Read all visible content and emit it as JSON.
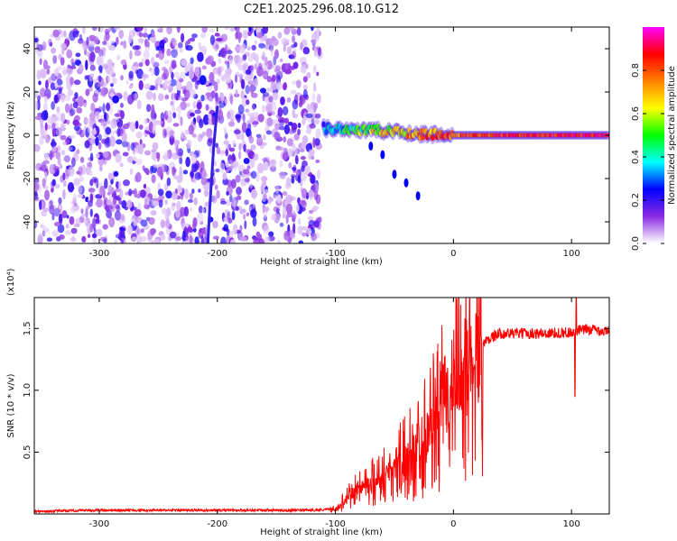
{
  "chart_data": [
    {
      "type": "heatmap",
      "title": "C2E1.2025.296.08.10.G12",
      "xlabel": "Height of straight line (km)",
      "ylabel": "Frequency (Hz)",
      "xlim": [
        -355,
        132
      ],
      "ylim": [
        -50,
        50
      ],
      "xticks": [
        -300,
        -200,
        -100,
        0,
        100
      ],
      "xtick_labels": [
        "-300",
        "-200",
        "-100",
        "0",
        "100"
      ],
      "yticks": [
        -40,
        -20,
        0,
        20,
        40
      ],
      "ytick_labels": [
        "-40",
        "-20",
        "0",
        "20",
        "40"
      ],
      "colorbar": {
        "label": "Normalized spectral amplitude",
        "range": [
          0,
          1
        ],
        "ticks": [
          0.0,
          0.2,
          0.4,
          0.6,
          0.8
        ],
        "tick_labels": [
          "0.0",
          "0.2",
          "0.4",
          "0.6",
          "0.8"
        ],
        "colors": [
          "#ffffff",
          "#8a2be2",
          "#0000ff",
          "#00ffff",
          "#00ff00",
          "#ffff00",
          "#ff8000",
          "#ff0000",
          "#ff00ff"
        ]
      },
      "noise_region_x": [
        -355,
        -113
      ],
      "signal_track": [
        {
          "x": -110,
          "f": 3.5,
          "a": 0.3
        },
        {
          "x": -95,
          "f": 3.0,
          "a": 0.4
        },
        {
          "x": -80,
          "f": 2.5,
          "a": 0.5
        },
        {
          "x": -65,
          "f": 2.0,
          "a": 0.6
        },
        {
          "x": -50,
          "f": 1.5,
          "a": 0.65
        },
        {
          "x": -35,
          "f": 1.0,
          "a": 0.7
        },
        {
          "x": -20,
          "f": 0.5,
          "a": 0.75
        },
        {
          "x": 0,
          "f": 0.0,
          "a": 0.8
        },
        {
          "x": 50,
          "f": 0.0,
          "a": 0.85
        },
        {
          "x": 100,
          "f": 0.0,
          "a": 0.9
        },
        {
          "x": 132,
          "f": 0.0,
          "a": 0.9
        }
      ],
      "secondary_track": [
        {
          "x": -70,
          "f": -5
        },
        {
          "x": -60,
          "f": -9
        },
        {
          "x": -50,
          "f": -18
        },
        {
          "x": -40,
          "f": -22
        },
        {
          "x": -30,
          "f": -28
        }
      ],
      "streak": [
        {
          "x": -200,
          "f": 13
        },
        {
          "x": -203,
          "f": -5
        },
        {
          "x": -206,
          "f": -30
        },
        {
          "x": -208,
          "f": -50
        }
      ]
    },
    {
      "type": "line",
      "xlabel": "Height of straight line (km)",
      "ylabel": "SNR (10 * v/v)",
      "yscale_label": "(x10⁴)",
      "color": "#ff0000",
      "xlim": [
        -355,
        132
      ],
      "ylim": [
        0,
        1.75
      ],
      "xticks": [
        -300,
        -200,
        -100,
        0,
        100
      ],
      "xtick_labels": [
        "-300",
        "-200",
        "-100",
        "0",
        "100"
      ],
      "yticks": [
        0.5,
        1.0,
        1.5
      ],
      "ytick_labels": [
        "0.5",
        "1.0",
        "1.5"
      ],
      "x": [
        -355,
        -300,
        -200,
        -120,
        -100,
        -90,
        -80,
        -70,
        -60,
        -50,
        -40,
        -30,
        -20,
        -15,
        -10,
        0,
        10,
        20,
        30,
        40,
        60,
        80,
        100,
        110,
        120,
        132
      ],
      "y": [
        0.02,
        0.03,
        0.03,
        0.03,
        0.04,
        0.12,
        0.22,
        0.25,
        0.3,
        0.38,
        0.45,
        0.55,
        0.68,
        0.75,
        0.85,
        0.98,
        1.15,
        1.33,
        1.42,
        1.46,
        1.46,
        1.46,
        1.47,
        1.49,
        1.49,
        1.47
      ]
    }
  ]
}
